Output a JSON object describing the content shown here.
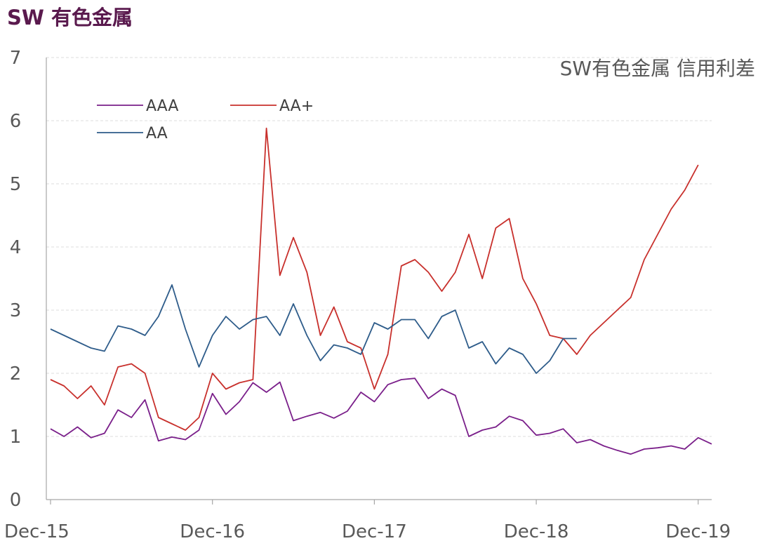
{
  "page": {
    "title": "SW 有色金属"
  },
  "chart_data": {
    "type": "line",
    "title": "SW有色金属 信用利差",
    "xlabel": "",
    "ylabel": "",
    "x_tick_labels": [
      "Dec-15",
      "Dec-16",
      "Dec-17",
      "Dec-18",
      "Dec-19"
    ],
    "x_tick_dates": [
      "2015-12",
      "2016-12",
      "2017-12",
      "2018-12",
      "2019-12"
    ],
    "xlim": [
      "2015-12",
      "2020-01"
    ],
    "y_ticks": [
      0,
      1,
      2,
      3,
      4,
      5,
      6,
      7
    ],
    "ylim": [
      0,
      7
    ],
    "grid": "horizontal-dashed",
    "legend": "top-left",
    "series": [
      {
        "name": "AAA",
        "color": "#7a1f8a",
        "points": [
          [
            "2015-12",
            1.12
          ],
          [
            "2016-01",
            1.0
          ],
          [
            "2016-02",
            1.15
          ],
          [
            "2016-03",
            0.98
          ],
          [
            "2016-04",
            1.05
          ],
          [
            "2016-05",
            1.42
          ],
          [
            "2016-06",
            1.3
          ],
          [
            "2016-07",
            1.58
          ],
          [
            "2016-08",
            0.93
          ],
          [
            "2016-09",
            0.99
          ],
          [
            "2016-10",
            0.95
          ],
          [
            "2016-11",
            1.1
          ],
          [
            "2016-12",
            1.68
          ],
          [
            "2017-01",
            1.35
          ],
          [
            "2017-02",
            1.55
          ],
          [
            "2017-03",
            1.85
          ],
          [
            "2017-04",
            1.7
          ],
          [
            "2017-05",
            1.86
          ],
          [
            "2017-06",
            1.25
          ],
          [
            "2017-07",
            1.32
          ],
          [
            "2017-08",
            1.38
          ],
          [
            "2017-09",
            1.29
          ],
          [
            "2017-10",
            1.4
          ],
          [
            "2017-11",
            1.7
          ],
          [
            "2017-12",
            1.55
          ],
          [
            "2018-01",
            1.82
          ],
          [
            "2018-02",
            1.9
          ],
          [
            "2018-03",
            1.92
          ],
          [
            "2018-04",
            1.6
          ],
          [
            "2018-05",
            1.75
          ],
          [
            "2018-06",
            1.65
          ],
          [
            "2018-07",
            1.0
          ],
          [
            "2018-08",
            1.1
          ],
          [
            "2018-09",
            1.15
          ],
          [
            "2018-10",
            1.32
          ],
          [
            "2018-11",
            1.25
          ],
          [
            "2018-12",
            1.02
          ],
          [
            "2019-01",
            1.05
          ],
          [
            "2019-02",
            1.12
          ],
          [
            "2019-03",
            0.9
          ],
          [
            "2019-04",
            0.95
          ],
          [
            "2019-05",
            0.85
          ],
          [
            "2019-06",
            0.78
          ],
          [
            "2019-07",
            0.72
          ],
          [
            "2019-08",
            0.8
          ],
          [
            "2019-09",
            0.82
          ],
          [
            "2019-10",
            0.85
          ],
          [
            "2019-11",
            0.8
          ],
          [
            "2019-12",
            0.98
          ],
          [
            "2020-01",
            0.88
          ]
        ]
      },
      {
        "name": "AA+",
        "color": "#c8302c",
        "points": [
          [
            "2015-12",
            1.9
          ],
          [
            "2016-01",
            1.8
          ],
          [
            "2016-02",
            1.6
          ],
          [
            "2016-03",
            1.8
          ],
          [
            "2016-04",
            1.5
          ],
          [
            "2016-05",
            2.1
          ],
          [
            "2016-06",
            2.15
          ],
          [
            "2016-07",
            2.0
          ],
          [
            "2016-08",
            1.3
          ],
          [
            "2016-09",
            1.2
          ],
          [
            "2016-10",
            1.1
          ],
          [
            "2016-11",
            1.3
          ],
          [
            "2016-12",
            2.0
          ],
          [
            "2017-01",
            1.75
          ],
          [
            "2017-02",
            1.85
          ],
          [
            "2017-03",
            1.9
          ],
          [
            "2017-04",
            5.88
          ],
          [
            "2017-05",
            3.55
          ],
          [
            "2017-06",
            4.15
          ],
          [
            "2017-07",
            3.6
          ],
          [
            "2017-08",
            2.6
          ],
          [
            "2017-09",
            3.05
          ],
          [
            "2017-10",
            2.5
          ],
          [
            "2017-11",
            2.4
          ],
          [
            "2017-12",
            1.75
          ],
          [
            "2018-01",
            2.3
          ],
          [
            "2018-02",
            3.7
          ],
          [
            "2018-03",
            3.8
          ],
          [
            "2018-04",
            3.6
          ],
          [
            "2018-05",
            3.3
          ],
          [
            "2018-06",
            3.6
          ],
          [
            "2018-07",
            4.2
          ],
          [
            "2018-08",
            3.5
          ],
          [
            "2018-09",
            4.3
          ],
          [
            "2018-10",
            4.45
          ],
          [
            "2018-11",
            3.5
          ],
          [
            "2018-12",
            3.1
          ],
          [
            "2019-01",
            2.6
          ],
          [
            "2019-02",
            2.55
          ],
          [
            "2019-03",
            2.3
          ],
          [
            "2019-04",
            2.6
          ],
          [
            "2019-05",
            2.8
          ],
          [
            "2019-06",
            3.0
          ],
          [
            "2019-07",
            3.2
          ],
          [
            "2019-08",
            3.8
          ],
          [
            "2019-09",
            4.2
          ],
          [
            "2019-10",
            4.6
          ],
          [
            "2019-11",
            4.9
          ],
          [
            "2019-12",
            5.3
          ]
        ]
      },
      {
        "name": "AA",
        "color": "#2e5c8a",
        "points": [
          [
            "2015-12",
            2.7
          ],
          [
            "2016-01",
            2.6
          ],
          [
            "2016-02",
            2.5
          ],
          [
            "2016-03",
            2.4
          ],
          [
            "2016-04",
            2.35
          ],
          [
            "2016-05",
            2.75
          ],
          [
            "2016-06",
            2.7
          ],
          [
            "2016-07",
            2.6
          ],
          [
            "2016-08",
            2.9
          ],
          [
            "2016-09",
            3.4
          ],
          [
            "2016-10",
            2.7
          ],
          [
            "2016-11",
            2.1
          ],
          [
            "2016-12",
            2.6
          ],
          [
            "2017-01",
            2.9
          ],
          [
            "2017-02",
            2.7
          ],
          [
            "2017-03",
            2.85
          ],
          [
            "2017-04",
            2.9
          ],
          [
            "2017-05",
            2.6
          ],
          [
            "2017-06",
            3.1
          ],
          [
            "2017-07",
            2.6
          ],
          [
            "2017-08",
            2.2
          ],
          [
            "2017-09",
            2.45
          ],
          [
            "2017-10",
            2.4
          ],
          [
            "2017-11",
            2.3
          ],
          [
            "2017-12",
            2.8
          ],
          [
            "2018-01",
            2.7
          ],
          [
            "2018-02",
            2.85
          ],
          [
            "2018-03",
            2.85
          ],
          [
            "2018-04",
            2.55
          ],
          [
            "2018-05",
            2.9
          ],
          [
            "2018-06",
            3.0
          ],
          [
            "2018-07",
            2.4
          ],
          [
            "2018-08",
            2.5
          ],
          [
            "2018-09",
            2.15
          ],
          [
            "2018-10",
            2.4
          ],
          [
            "2018-11",
            2.3
          ],
          [
            "2018-12",
            2.0
          ],
          [
            "2019-01",
            2.2
          ],
          [
            "2019-02",
            2.55
          ],
          [
            "2019-03",
            2.55
          ]
        ]
      }
    ]
  }
}
